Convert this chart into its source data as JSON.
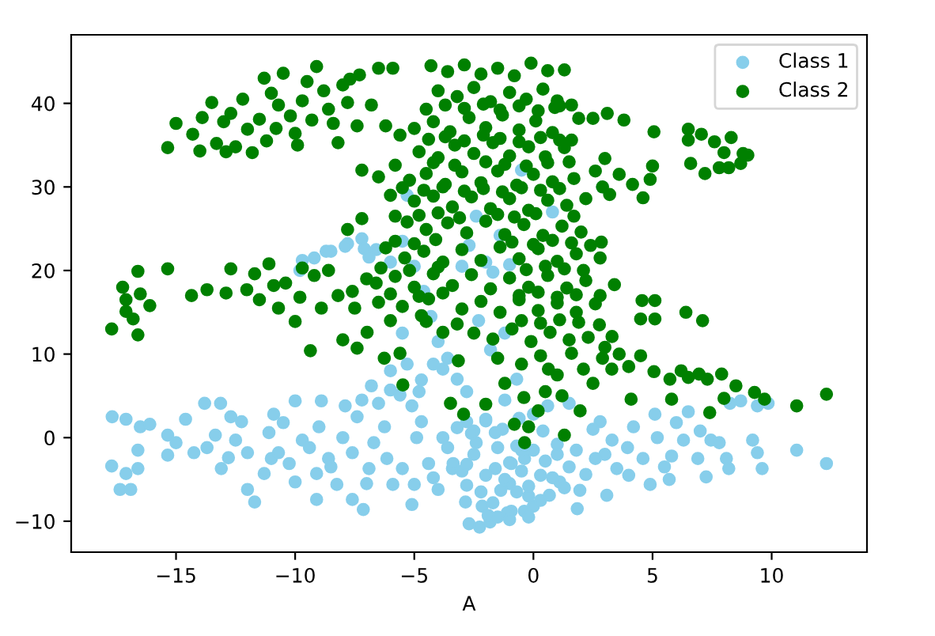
{
  "chart_data": {
    "type": "scatter",
    "xlabel": "A",
    "xlim": [
      -19.4,
      14.0
    ],
    "ylim": [
      -13.7,
      48.2
    ],
    "xticks": [
      {
        "value": -15,
        "label": "−15"
      },
      {
        "value": -10,
        "label": "−10"
      },
      {
        "value": -5,
        "label": "−5"
      },
      0,
      5,
      10
    ],
    "yticks": [
      {
        "value": -10,
        "label": "−10"
      },
      0,
      10,
      20,
      30,
      40
    ],
    "marker": "circle",
    "legend": "top right",
    "series": [
      {
        "name": "Class 1",
        "color": "#87ceeb",
        "x": [
          -17.68,
          -17.1,
          -16.5,
          -16.1,
          -16.6,
          -17.7,
          -17.1,
          -16.6,
          -17.35,
          -16.9,
          -15.35,
          -15.0,
          -15.35,
          -14.6,
          -13.8,
          -13.13,
          -14.25,
          -13.7,
          -13.35,
          -13.1,
          -12.7,
          -12.25,
          -12.5,
          -12.0,
          -12.0,
          -11.7,
          -11.3,
          -10.9,
          -11.1,
          -11.0,
          -10.7,
          -10.25,
          -10.0,
          -10.0,
          -9.7,
          -9.4,
          -9.1,
          -9.1,
          -9.0,
          -8.9,
          -8.6,
          -8.25,
          -8.0,
          -7.9,
          -7.6,
          -7.4,
          -7.6,
          -7.14,
          -6.9,
          -6.7,
          -6.5,
          -6.25,
          -6.15,
          -5.9,
          -6.0,
          -5.6,
          -5.1,
          -5.0,
          -5.1,
          -4.9,
          -4.7,
          -4.4,
          -4.0,
          -3.6,
          -3.4,
          -2.85,
          -2.7,
          -3.8,
          -4.2,
          -4.7,
          -3.8,
          -3.37,
          -2.8,
          -2.26,
          -1.82,
          -2.15,
          -1.37,
          -0.93,
          -0.38,
          0.0,
          -0.93,
          -1.6,
          -2.4,
          -2.8,
          -1.6,
          -0.37,
          0.67,
          1.1,
          1.84,
          1.95,
          2.2,
          3.08,
          2.6,
          3.5,
          3.3,
          3.95,
          4.2,
          4.6,
          4.9,
          5.1,
          5.2,
          5.7,
          5.8,
          6.3,
          6.5,
          6.9,
          7.25,
          7.45,
          7.8,
          8.1,
          8.2,
          9.2,
          9.4,
          9.6,
          9.4,
          9.85,
          11.05,
          12.3,
          8.7,
          8.25,
          2.8,
          0.6,
          1.5,
          -1.2,
          -2.0,
          -0.5,
          0.3,
          -1.0,
          -2.5,
          -0.2,
          1.0,
          -1.5,
          -0.7,
          -3.0,
          -1.1,
          -9.8,
          -9.2,
          -8.5,
          -7.8,
          -7.2,
          -6.6,
          -6.0,
          -5.5,
          -5.0,
          -4.6,
          -4.3,
          -4.0,
          -3.6,
          -3.2,
          -2.8,
          -3.0,
          -2.7,
          -2.4,
          -2.0,
          -1.7,
          -1.4,
          -1.0,
          -0.5,
          0.8,
          2.9,
          -2.3,
          -1.8,
          -1.2,
          -0.7,
          0.0,
          -5.5,
          -6.0,
          -4.8,
          -5.3,
          -6.8,
          -7.2,
          -9.7,
          -8.7,
          -7.9,
          -7.1,
          -6.9,
          -5.3,
          -2.5,
          -2.0,
          -1.5,
          -1.0,
          -0.5,
          0.0,
          0.5,
          1.0,
          1.5,
          -2.2,
          -1.7,
          -1.2,
          -0.7,
          -0.2,
          0.3,
          0.8,
          1.3,
          -1.9,
          -1.0,
          -0.2,
          -2.8,
          -3.2,
          -2.0,
          -1.3,
          -0.6,
          0.4,
          1.8,
          2.5,
          3.0,
          -2.6,
          -8.5,
          -10.5,
          -12.8,
          -7.0,
          -5.5,
          -4.2,
          4.0,
          6.0,
          7.0,
          5.5
        ],
        "values": [
          2.5,
          2.2,
          1.3,
          1.6,
          -1.5,
          -3.4,
          -4.3,
          -3.7,
          -6.2,
          -6.2,
          0.3,
          -0.6,
          -2.1,
          2.2,
          4.1,
          4.1,
          -1.8,
          -1.2,
          0.3,
          -3.7,
          2.5,
          1.9,
          -0.3,
          -1.8,
          -6.2,
          -7.7,
          -4.3,
          2.8,
          0.6,
          -2.5,
          -1.8,
          -3.1,
          4.4,
          -5.3,
          -0.3,
          -1.2,
          -4.3,
          -7.4,
          1.3,
          4.4,
          -2.5,
          -5.6,
          0.0,
          3.8,
          -1.8,
          2.5,
          -7.4,
          -8.6,
          -3.7,
          -0.6,
          4.1,
          1.3,
          -2.5,
          -5.6,
          5.7,
          5.1,
          3.8,
          -5.6,
          -8.0,
          0.0,
          1.9,
          -3.1,
          -6.2,
          -1.2,
          -3.7,
          -7.7,
          -10.3,
          8.2,
          8.8,
          6.9,
          0.0,
          -3.1,
          -5.7,
          -10.7,
          -10.1,
          -8.2,
          -6.3,
          -8.8,
          -8.8,
          -8.2,
          -3.1,
          -3.7,
          -0.6,
          1.9,
          0.6,
          -2.5,
          -6.9,
          -5.3,
          -8.5,
          -6.3,
          -4.4,
          -6.9,
          -2.5,
          -3.7,
          -0.3,
          -1.2,
          1.3,
          -2.5,
          -5.6,
          2.8,
          0.0,
          -5.0,
          -2.2,
          -0.3,
          3.1,
          -2.5,
          -4.7,
          -0.3,
          -0.6,
          -2.5,
          -3.7,
          -0.3,
          -1.8,
          -3.7,
          3.8,
          4.1,
          -1.5,
          -3.1,
          4.4,
          4.1,
          1.9,
          3.8,
          4.1,
          4.5,
          2.0,
          -1.5,
          -4.5,
          -5.5,
          0.8,
          -7.0,
          -2.0,
          -9.5,
          -1.0,
          -4.0,
          -9.0,
          20.0,
          21.5,
          22.3,
          23.2,
          23.8,
          22.5,
          21.0,
          23.5,
          20.5,
          17.5,
          14.5,
          11.5,
          9.5,
          7.0,
          5.5,
          20.5,
          23.0,
          26.5,
          21.0,
          19.8,
          24.2,
          20.7,
          32.0,
          27.0,
          30.0,
          14.0,
          10.5,
          12.5,
          7.0,
          2.8,
          12.5,
          8.0,
          5.5,
          8.8,
          6.2,
          4.5,
          21.2,
          22.3,
          22.9,
          22.6,
          21.6,
          29.0,
          -2.0,
          -4.5,
          -1.2,
          -3.0,
          -4.0,
          -1.5,
          -2.8,
          -0.8,
          -3.5,
          -6.5,
          -7.8,
          -5.0,
          -6.5,
          -5.8,
          -7.5,
          -4.8,
          -6.0,
          -9.3,
          -9.8,
          -9.5,
          -3.2,
          1.2,
          2.2,
          1.0,
          2.3,
          0.8,
          -1.5,
          1.0,
          -2.0,
          0.5,
          -3.5,
          1.8,
          -2.4,
          -5.5,
          -3.7,
          -4.8,
          -4.5,
          1.8,
          0.8,
          -3.5
        ]
      },
      {
        "name": "Class 2",
        "color": "#008000",
        "x": [
          -15.35,
          -15.0,
          -14.3,
          -13.9,
          -13.5,
          -13.3,
          -13.0,
          -12.7,
          -12.5,
          -12.0,
          -11.8,
          -11.5,
          -11.2,
          -11.0,
          -10.7,
          -10.5,
          -10.2,
          -10.0,
          -9.7,
          -9.5,
          -9.3,
          -9.1,
          -8.8,
          -8.6,
          -8.4,
          -8.2,
          -8.0,
          -7.7,
          -7.8,
          -7.4,
          -7.3,
          -6.8,
          -6.5,
          -6.2,
          -5.9,
          -11.3,
          -12.2,
          -9.9,
          -10.8,
          -14.0,
          -12.9,
          -17.7,
          -17.24,
          -17.1,
          -17.1,
          -16.8,
          -16.6,
          -16.6,
          -16.1,
          -16.5,
          -15.35,
          -14.35,
          -13.7,
          -12.9,
          -12.7,
          -12.03,
          -11.7,
          -11.1,
          -10.9,
          -10.4,
          -10.7,
          -10.0,
          -9.7,
          -9.36,
          -9.2,
          -8.9,
          -8.6,
          -8.0,
          -8.2,
          -7.8,
          -7.4,
          -7.2,
          -6.98,
          -6.26,
          -6.0,
          -5.8,
          -5.6,
          -5.48,
          -4.7,
          -3.8,
          -3.48,
          -2.93,
          -3.15,
          -7.0,
          -7.6,
          -9.8,
          -11.5,
          -4.3,
          -3.6,
          -2.9,
          -2.2,
          -1.5,
          -0.8,
          -0.1,
          0.6,
          1.3,
          -4.0,
          -3.2,
          -2.5,
          -1.8,
          -1.0,
          -0.3,
          0.4,
          1.0,
          -5.0,
          -4.2,
          -3.5,
          -2.7,
          -2.0,
          -1.3,
          -0.6,
          0.1,
          0.8,
          -5.6,
          -4.8,
          -4.0,
          -3.3,
          -2.5,
          -1.7,
          -1.0,
          -0.2,
          0.5,
          1.5,
          -7.2,
          -6.5,
          -5.8,
          -5.2,
          -4.5,
          -3.7,
          -3.0,
          -2.2,
          -1.5,
          -0.7,
          0.0,
          0.8,
          1.7,
          -6.0,
          -5.0,
          -4.2,
          -3.4,
          -2.6,
          -1.8,
          -1.0,
          -0.2,
          0.6,
          1.4,
          2.2,
          -5.3,
          -4.5,
          -3.6,
          -2.8,
          -2.0,
          -1.2,
          -0.4,
          0.4,
          1.2,
          2.0,
          -6.2,
          -5.4,
          -4.6,
          -3.8,
          -3.0,
          -2.2,
          -1.4,
          -0.6,
          0.2,
          1.0,
          1.8,
          2.8,
          -6.6,
          -5.8,
          -5.0,
          -4.2,
          -3.4,
          -2.6,
          -1.8,
          -1.0,
          -0.2,
          0.6,
          1.4,
          2.2,
          3.4,
          -7.5,
          -6.5,
          -5.5,
          -4.4,
          -3.0,
          -2.2,
          -1.4,
          -0.6,
          0.2,
          1.0,
          1.8,
          2.6,
          -2.5,
          -1.7,
          -0.9,
          -0.1,
          0.7,
          1.5,
          2.3,
          3.0,
          -1.5,
          -0.5,
          0.3,
          1.0,
          -1.2,
          -0.4,
          -2.0,
          0.5,
          2.85,
          1.6,
          2.5,
          3.1,
          3.8,
          5.06,
          6.5,
          6.5,
          7.05,
          7.6,
          8.3,
          8.8,
          9.0,
          8.7,
          6.6,
          7.2,
          7.8,
          8.2,
          8.0,
          2.6,
          3.0,
          3.6,
          4.16,
          4.6,
          4.9,
          5.0,
          3.2,
          2.9,
          1.3,
          1.9,
          1.1,
          1.6,
          -0.37,
          -0.8,
          -0.2,
          1.3,
          1.96,
          3.29,
          4.0,
          5.06,
          4.1,
          5.73,
          5.8,
          6.5,
          6.95,
          7.3,
          7.9,
          7.4,
          8.0,
          9.28,
          9.7,
          11.05,
          12.3,
          4.5,
          5.1,
          6.4,
          7.1,
          4.56,
          5.1,
          3.3,
          2.77,
          1.6,
          2.1,
          0.63,
          2.5,
          3.6,
          4.5,
          6.2,
          8.5,
          1.2,
          2.9,
          0.2,
          -4.5,
          -3.7,
          -2.9,
          -2.1,
          -1.4,
          -0.6,
          0.2,
          0.9,
          -4.4,
          -3.7,
          -2.9,
          -2.1,
          -1.4,
          -0.6,
          0.3,
          1.1,
          -4.2,
          -3.3,
          -2.0,
          -1.2,
          -0.3,
          0.6,
          -5.5,
          -4.6,
          -3.8,
          -2.9,
          -2.1,
          -1.3,
          -0.5,
          0.3,
          1.1,
          -4.8,
          -4.0,
          -3.1,
          -1.5,
          -0.8,
          0.1,
          1.7,
          -5.8,
          -5.0,
          -4.1,
          -0.9,
          0.0,
          0.8,
          1.6,
          2.4,
          -6.4,
          -5.2,
          -4.0,
          -0.3,
          0.5,
          1.3,
          2.1,
          -6.0,
          -4.8,
          -3.8,
          -0.6,
          0.2,
          1.0,
          1.8,
          2.8,
          -4.5,
          -3.2,
          -0.5,
          0.3,
          1.1,
          1.9
        ],
        "values": [
          34.7,
          37.6,
          36.3,
          38.3,
          40.1,
          35.2,
          37.8,
          38.8,
          34.8,
          36.9,
          34.1,
          38.1,
          35.5,
          41.2,
          39.8,
          43.6,
          38.5,
          36.4,
          40.3,
          42.6,
          38.0,
          44.4,
          41.5,
          39.3,
          37.6,
          35.3,
          42.2,
          42.9,
          40.1,
          37.3,
          43.4,
          39.8,
          44.2,
          37.3,
          44.2,
          43.0,
          40.5,
          35.0,
          37.0,
          34.3,
          34.2,
          13.0,
          18.0,
          16.5,
          15.1,
          14.2,
          12.3,
          19.9,
          15.8,
          17.2,
          20.2,
          17.0,
          17.7,
          17.3,
          20.2,
          17.7,
          19.6,
          20.8,
          18.2,
          18.5,
          15.5,
          13.9,
          20.3,
          10.4,
          19.4,
          15.5,
          20.0,
          11.7,
          17.0,
          24.9,
          10.7,
          26.2,
          12.6,
          9.5,
          14.0,
          26.5,
          10.1,
          6.3,
          14.6,
          12.6,
          4.1,
          2.8,
          9.2,
          19.0,
          17.5,
          16.8,
          16.5,
          44.5,
          43.8,
          44.6,
          43.5,
          44.2,
          43.3,
          44.8,
          43.9,
          44.0,
          41.5,
          40.8,
          41.9,
          40.2,
          41.3,
          40.5,
          41.7,
          40.3,
          37.0,
          37.8,
          36.6,
          38.3,
          37.1,
          38.6,
          36.8,
          37.9,
          36.5,
          36.2,
          34.2,
          33.5,
          35.0,
          34.0,
          35.3,
          33.7,
          34.8,
          33.6,
          33.0,
          32.0,
          31.2,
          32.6,
          30.8,
          31.6,
          30.3,
          31.8,
          30.5,
          31.9,
          30.2,
          31.5,
          30.6,
          31.0,
          29.0,
          28.3,
          28.9,
          27.6,
          28.8,
          27.4,
          28.6,
          27.2,
          28.4,
          27.8,
          28.6,
          25.8,
          24.9,
          25.7,
          24.5,
          25.9,
          24.3,
          25.5,
          24.2,
          25.3,
          24.6,
          22.7,
          21.5,
          22.3,
          21.0,
          22.5,
          21.2,
          22.8,
          21.4,
          22.6,
          21.1,
          22.0,
          21.5,
          18.5,
          19.3,
          18.0,
          19.6,
          18.2,
          19.5,
          17.8,
          19.1,
          18.0,
          19.4,
          17.9,
          18.8,
          18.3,
          15.5,
          16.2,
          15.7,
          16.6,
          15.4,
          16.3,
          15.0,
          16.5,
          15.2,
          16.1,
          15.0,
          16.0,
          12.5,
          11.8,
          13.0,
          11.5,
          12.6,
          11.7,
          12.0,
          10.8,
          9.5,
          8.8,
          9.8,
          7.5,
          6.5,
          4.8,
          4.0,
          5.5,
          23.4,
          39.8,
          38.2,
          38.8,
          38.0,
          36.6,
          36.9,
          35.6,
          36.3,
          35.4,
          35.9,
          34.0,
          33.8,
          32.8,
          32.8,
          31.6,
          32.3,
          32.3,
          34.1,
          31.9,
          33.4,
          31.5,
          30.3,
          28.7,
          30.9,
          32.5,
          29.1,
          30.0,
          34.7,
          38.2,
          39.7,
          35.6,
          -0.6,
          1.6,
          1.3,
          0.3,
          3.2,
          8.2,
          8.5,
          7.9,
          4.6,
          7.0,
          4.6,
          7.2,
          7.6,
          7.0,
          7.6,
          3.0,
          4.7,
          5.4,
          4.6,
          3.8,
          5.2,
          14.2,
          14.2,
          15.0,
          14.0,
          16.4,
          16.4,
          12.1,
          13.5,
          10.1,
          8.2,
          8.2,
          6.5,
          10.0,
          9.8,
          8.0,
          6.2,
          5.0,
          9.5,
          3.2,
          39.3,
          39.8,
          39.4,
          39.9,
          39.2,
          39.7,
          39.1,
          39.5,
          35.7,
          36.0,
          35.5,
          36.2,
          35.8,
          35.4,
          35.9,
          35.6,
          32.9,
          32.6,
          33.0,
          32.7,
          32.5,
          32.9,
          29.9,
          29.6,
          30.0,
          29.5,
          29.8,
          29.4,
          29.9,
          29.6,
          29.8,
          26.6,
          26.9,
          26.3,
          26.7,
          26.4,
          26.8,
          26.5,
          23.5,
          23.2,
          23.7,
          23.4,
          23.1,
          23.6,
          23.3,
          23.0,
          20.3,
          20.0,
          20.4,
          20.1,
          20.5,
          20.2,
          20.0,
          17.2,
          16.9,
          17.3,
          17.0,
          17.4,
          16.8,
          17.1,
          17.0,
          13.9,
          13.6,
          14.0,
          13.7,
          14.1,
          13.8
        ]
      }
    ]
  }
}
